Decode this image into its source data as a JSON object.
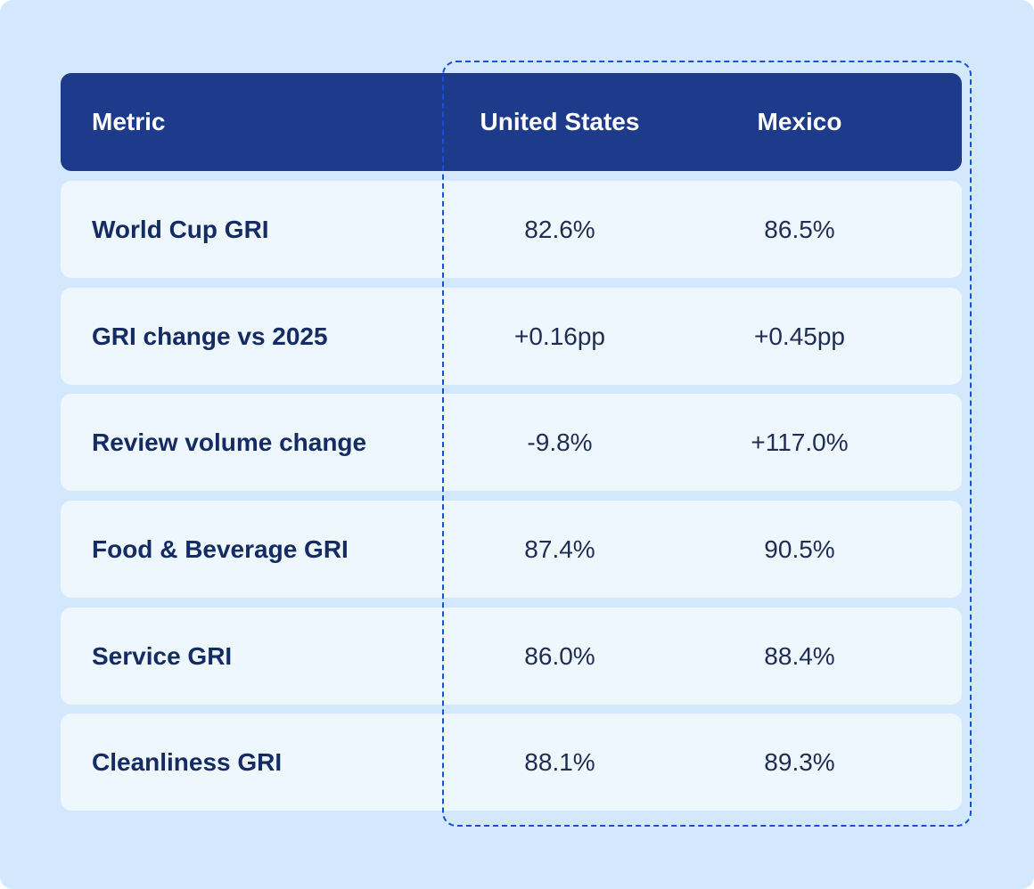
{
  "table": {
    "headers": {
      "metric": "Metric",
      "us": "United States",
      "mx": "Mexico"
    },
    "rows": [
      {
        "metric": "World Cup GRI",
        "us": "82.6%",
        "mx": "86.5%"
      },
      {
        "metric": "GRI change vs 2025",
        "us": "+0.16pp",
        "mx": "+0.45pp"
      },
      {
        "metric": "Review volume change",
        "us": "-9.8%",
        "mx": "+117.0%"
      },
      {
        "metric": "Food & Beverage GRI",
        "us": "87.4%",
        "mx": "90.5%"
      },
      {
        "metric": "Service GRI",
        "us": "86.0%",
        "mx": "88.4%"
      },
      {
        "metric": "Cleanliness GRI",
        "us": "88.1%",
        "mx": "89.3%"
      }
    ]
  },
  "chart_data": {
    "type": "table",
    "columns": [
      "Metric",
      "United States",
      "Mexico"
    ],
    "rows": [
      [
        "World Cup GRI",
        "82.6%",
        "86.5%"
      ],
      [
        "GRI change vs 2025",
        "+0.16pp",
        "+0.45pp"
      ],
      [
        "Review volume change",
        "-9.8%",
        "+117.0%"
      ],
      [
        "Food & Beverage GRI",
        "87.4%",
        "90.5%"
      ],
      [
        "Service GRI",
        "86.0%",
        "88.4%"
      ],
      [
        "Cleanliness GRI",
        "88.1%",
        "89.3%"
      ]
    ]
  },
  "colors": {
    "background": "#d3e8fc",
    "header": "#1e3a8a",
    "row": "#eef6fe",
    "highlight_border": "#1d4ed8",
    "text": "#152b63"
  }
}
